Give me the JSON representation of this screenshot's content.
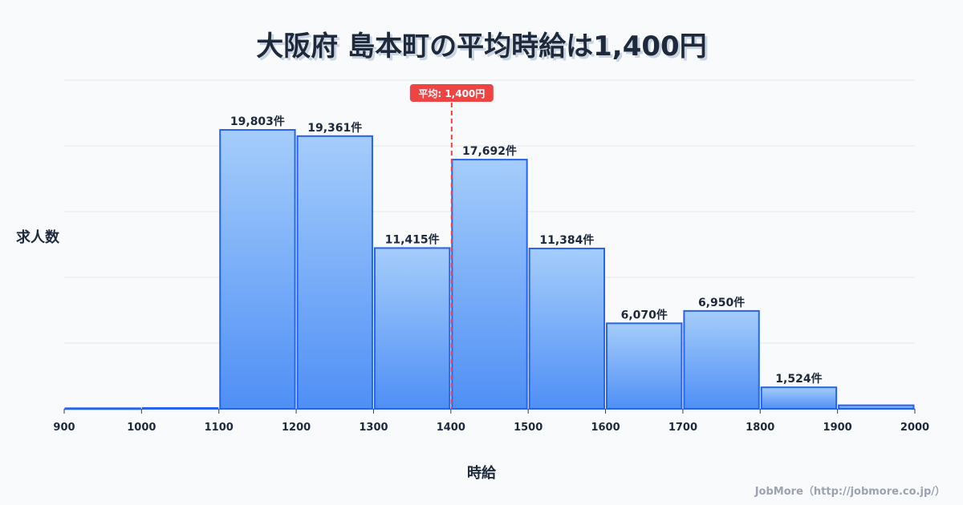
{
  "title": "大阪府 島本町の平均時給は1,400円",
  "credit": "JobMore（http://jobmore.co.jp/）",
  "chart_data": {
    "type": "bar",
    "title": "大阪府 島本町の平均時給は1,400円",
    "xlabel": "時給",
    "ylabel": "求人数",
    "bin_edges": [
      900,
      1000,
      1100,
      1200,
      1300,
      1400,
      1500,
      1600,
      1700,
      1800,
      1900,
      2000
    ],
    "x_tick_labels": [
      "900",
      "1000",
      "1100",
      "1200",
      "1300",
      "1400",
      "1500",
      "1600",
      "1700",
      "1800",
      "1900",
      "2000"
    ],
    "values": [
      40,
      60,
      19803,
      19361,
      11415,
      17692,
      11384,
      6070,
      6950,
      1524,
      250
    ],
    "data_labels": [
      "",
      "",
      "19,803件",
      "19,361件",
      "11,415件",
      "17,692件",
      "11,384件",
      "6,070件",
      "6,950件",
      "1,524件",
      ""
    ],
    "xlim": [
      900,
      2000
    ],
    "ylim": [
      0,
      23333
    ],
    "grid": true,
    "mean": {
      "value": 1400,
      "label": "平均: 1,400円",
      "color": "#ef4444"
    },
    "bar_color": "#3b82f6",
    "bar_edge_color": "#2563eb"
  }
}
